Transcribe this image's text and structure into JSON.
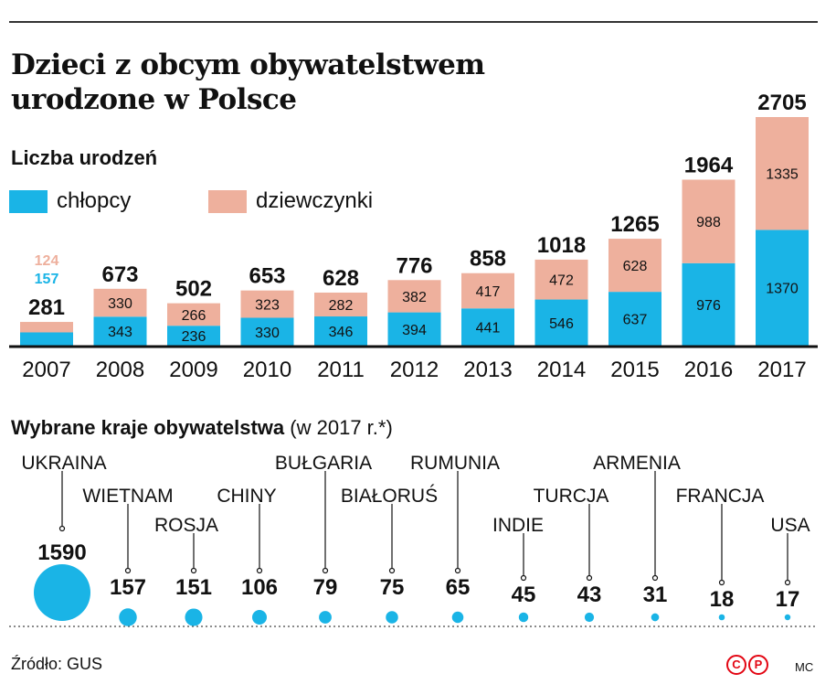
{
  "colors": {
    "boys": "#1ab4e6",
    "girls": "#eeb09d",
    "axis": "#111111",
    "dots": "#1ab4e6"
  },
  "title_line1": "Dzieci z obcym obywatelstwem",
  "title_line2": "urodzone w Polsce",
  "subtitle": "Liczba urodzeń",
  "legend": {
    "boys": "chłopcy",
    "girls": "dziewczynki"
  },
  "chart_data": [
    {
      "type": "bar",
      "stacked": true,
      "categories": [
        "2007",
        "2008",
        "2009",
        "2010",
        "2011",
        "2012",
        "2013",
        "2014",
        "2015",
        "2016",
        "2017"
      ],
      "series": [
        {
          "name": "chłopcy",
          "values": [
            157,
            343,
            236,
            330,
            346,
            394,
            441,
            546,
            637,
            976,
            1370
          ]
        },
        {
          "name": "dziewczynki",
          "values": [
            124,
            330,
            266,
            323,
            282,
            382,
            417,
            472,
            628,
            988,
            1335
          ]
        }
      ],
      "totals": [
        281,
        673,
        502,
        653,
        628,
        776,
        858,
        1018,
        1265,
        1964,
        2705
      ],
      "ylim": [
        0,
        2705
      ]
    },
    {
      "type": "scatter",
      "title": "Wybrane kraje obywatelstwa",
      "title_note": "(w 2017 r.*)",
      "categories": [
        "UKRAINA",
        "WIETNAM",
        "ROSJA",
        "CHINY",
        "BUŁGARIA",
        "BIAŁORUŚ",
        "RUMUNIA",
        "INDIE",
        "TURCJA",
        "ARMENIA",
        "FRANCJA",
        "USA"
      ],
      "values": [
        1590,
        157,
        151,
        106,
        79,
        75,
        65,
        45,
        43,
        31,
        18,
        17
      ]
    }
  ],
  "footer": {
    "source": "Źródło: GUS",
    "logo": [
      "C",
      "P"
    ],
    "author": "MC"
  }
}
